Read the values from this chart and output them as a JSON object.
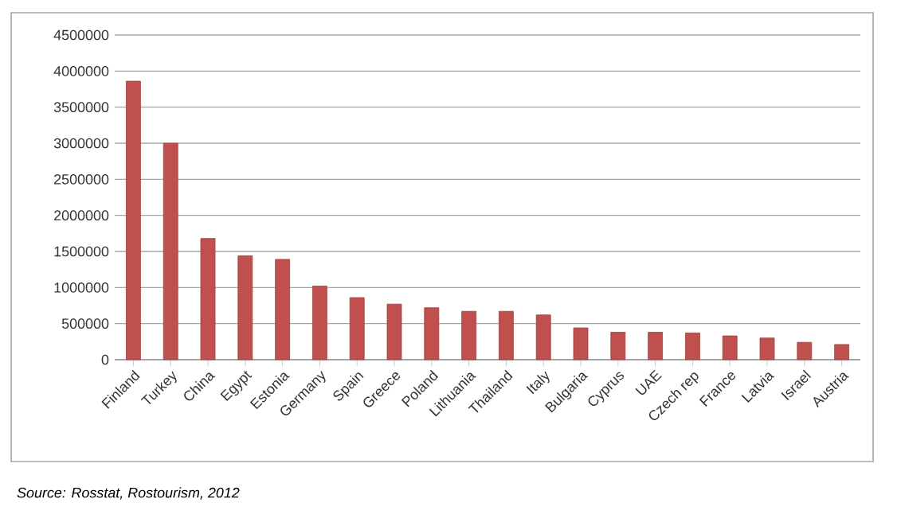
{
  "chart_data": {
    "type": "bar",
    "categories": [
      "Finland",
      "Turkey",
      "China",
      "Egypt",
      "Estonia",
      "Germany",
      "Spain",
      "Greece",
      "Poland",
      "Lithuania",
      "Thailand",
      "Italy",
      "Bulgaria",
      "Cyprus",
      "UAE",
      "Czech rep",
      "France",
      "Latvia",
      "Israel",
      "Austria"
    ],
    "values": [
      3860000,
      3000000,
      1680000,
      1440000,
      1390000,
      1020000,
      860000,
      770000,
      720000,
      670000,
      670000,
      620000,
      440000,
      380000,
      380000,
      370000,
      330000,
      300000,
      240000,
      210000
    ],
    "color": "#c0504d",
    "ylim": [
      0,
      4500000
    ],
    "yticks": [
      0,
      500000,
      1000000,
      1500000,
      2000000,
      2500000,
      3000000,
      3500000,
      4000000,
      4500000
    ],
    "grid": "y",
    "annotations": [
      "Source: *Rosstat, Rostourism, 2012*"
    ]
  }
}
